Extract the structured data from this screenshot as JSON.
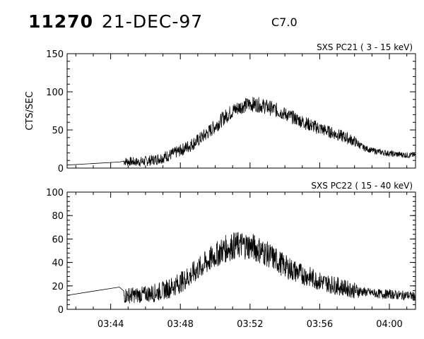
{
  "header": {
    "event_id": "11270",
    "date": "21-DEC-97",
    "flare_class": "C7.0"
  },
  "chart_data": [
    {
      "type": "line",
      "title": "SXS PC21  (  3 - 15 keV)",
      "xlabel": "",
      "ylabel": "CTS/SEC",
      "xlim": [
        "03:41:30",
        "04:01:30"
      ],
      "ylim": [
        0,
        150
      ],
      "x_ticks": [
        "03:44",
        "03:48",
        "03:52",
        "03:56",
        "04:00"
      ],
      "y_ticks": [
        "0",
        "50",
        "100",
        "150"
      ],
      "grid": false,
      "legend": "none",
      "series": [
        {
          "x": [
            "03:41:30",
            "03:44:30",
            "03:44:45",
            "03:45:30",
            "03:46:00",
            "03:46:30",
            "03:47:00",
            "03:47:30",
            "03:48:00",
            "03:48:30",
            "03:49:00",
            "03:49:30",
            "03:50:00",
            "03:50:30",
            "03:51:00",
            "03:51:30",
            "03:52:00",
            "03:52:30",
            "03:53:00",
            "03:53:30",
            "03:54:00",
            "03:54:30",
            "03:55:00",
            "03:55:30",
            "03:56:00",
            "03:56:30",
            "03:57:00",
            "03:57:30",
            "03:58:00",
            "03:58:30",
            "03:59:00",
            "03:59:30",
            "04:00:00",
            "04:00:30",
            "04:01:00",
            "04:01:30"
          ],
          "values": [
            4,
            8,
            9,
            8,
            9,
            11,
            14,
            18,
            23,
            29,
            36,
            45,
            55,
            66,
            75,
            81,
            84,
            83,
            80,
            76,
            71,
            66,
            61,
            56,
            52,
            48,
            44,
            40,
            35,
            27,
            23,
            21,
            19,
            18,
            17,
            17
          ],
          "noise": [
            0,
            0,
            6,
            6,
            7,
            7,
            8,
            8,
            8,
            9,
            9,
            9,
            10,
            10,
            10,
            10,
            10,
            10,
            10,
            10,
            9,
            9,
            9,
            9,
            9,
            8,
            8,
            8,
            7,
            4,
            4,
            4,
            4,
            4,
            4,
            4
          ]
        }
      ]
    },
    {
      "type": "line",
      "title": "SXS PC22  ( 15 - 40 keV)",
      "xlabel": "",
      "ylabel": "",
      "xlim": [
        "03:41:30",
        "04:01:30"
      ],
      "ylim": [
        0,
        100
      ],
      "x_ticks": [
        "03:44",
        "03:48",
        "03:52",
        "03:56",
        "04:00"
      ],
      "y_ticks": [
        "0",
        "20",
        "40",
        "60",
        "80",
        "100"
      ],
      "grid": false,
      "legend": "none",
      "series": [
        {
          "x": [
            "03:41:30",
            "03:44:30",
            "03:44:45",
            "03:45:30",
            "03:46:00",
            "03:46:30",
            "03:47:00",
            "03:47:30",
            "03:48:00",
            "03:48:30",
            "03:49:00",
            "03:49:30",
            "03:50:00",
            "03:50:30",
            "03:51:00",
            "03:51:30",
            "03:52:00",
            "03:52:30",
            "03:53:00",
            "03:53:30",
            "03:54:00",
            "03:54:30",
            "03:55:00",
            "03:55:30",
            "03:56:00",
            "03:56:30",
            "03:57:00",
            "03:57:30",
            "03:58:00",
            "03:58:30",
            "03:59:00",
            "03:59:30",
            "04:00:00",
            "04:00:30",
            "04:01:00",
            "04:01:30"
          ],
          "values": [
            12,
            19,
            12,
            12,
            13,
            14,
            16,
            19,
            23,
            28,
            34,
            40,
            46,
            51,
            54,
            55,
            54,
            51,
            47,
            42,
            37,
            33,
            30,
            27,
            24,
            22,
            20,
            18,
            16,
            15,
            14,
            13,
            13,
            12,
            12,
            11
          ],
          "noise": [
            0,
            0,
            7,
            7,
            7,
            8,
            8,
            9,
            9,
            10,
            10,
            11,
            11,
            12,
            12,
            12,
            12,
            12,
            11,
            11,
            10,
            10,
            9,
            9,
            8,
            8,
            8,
            7,
            7,
            4,
            4,
            4,
            4,
            4,
            4,
            4
          ]
        }
      ]
    }
  ]
}
